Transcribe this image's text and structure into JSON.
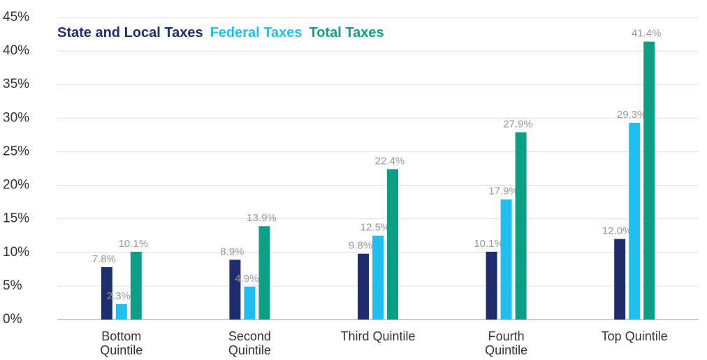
{
  "chart_data": {
    "type": "bar",
    "categories": [
      "Bottom Quintile",
      "Second Quintile",
      "Third Quintile",
      "Fourth Quintile",
      "Top Quintile"
    ],
    "series": [
      {
        "name": "State and Local Taxes",
        "color": "#1e2d6b",
        "values": [
          7.8,
          8.9,
          9.8,
          10.1,
          12.0
        ],
        "value_labels": [
          "7.8%",
          "8.9%",
          "9.8%",
          "10.1%",
          "12.0%"
        ]
      },
      {
        "name": "Federal Taxes",
        "color": "#1fbff0",
        "values": [
          2.3,
          4.9,
          12.5,
          17.9,
          29.3
        ],
        "value_labels": [
          "2.3%",
          "4.9%",
          "12.5%",
          "17.9%",
          "29.3%"
        ]
      },
      {
        "name": "Total Taxes",
        "color": "#0e9e86",
        "values": [
          10.1,
          13.9,
          22.4,
          27.9,
          41.4
        ],
        "value_labels": [
          "10.1%",
          "13.9%",
          "22.4%",
          "27.9%",
          "41.4%"
        ]
      }
    ],
    "ylim": [
      0,
      45
    ],
    "yticks": [
      {
        "value": 0,
        "label": "0%"
      },
      {
        "value": 5,
        "label": "5%"
      },
      {
        "value": 10,
        "label": "10%"
      },
      {
        "value": 15,
        "label": "15%"
      },
      {
        "value": 20,
        "label": "20%"
      },
      {
        "value": 25,
        "label": "25%"
      },
      {
        "value": 30,
        "label": "30%"
      },
      {
        "value": 35,
        "label": "35%"
      },
      {
        "value": 40,
        "label": "40%"
      },
      {
        "value": 45,
        "label": "45%"
      }
    ],
    "grid": true,
    "legend": "top-left"
  }
}
